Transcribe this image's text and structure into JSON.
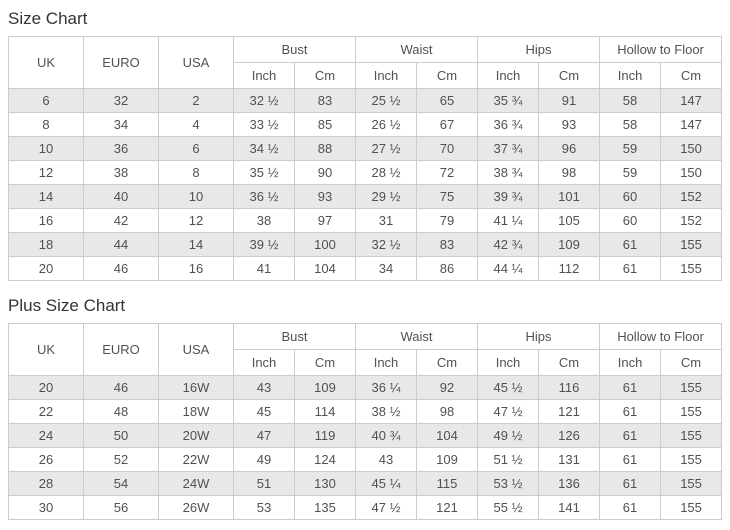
{
  "colors": {
    "page_background": "#ffffff",
    "stripe_row": "#e8e8e8",
    "table_border": "#cccccc",
    "cell_text": "#515151",
    "title_text": "#333333"
  },
  "tables": [
    {
      "title": "Size Chart",
      "simple_headers": [
        "UK",
        "EURO",
        "USA"
      ],
      "group_headers": [
        "Bust",
        "Waist",
        "Hips",
        "Hollow to Floor"
      ],
      "sub_headers": [
        "Inch",
        "Cm"
      ],
      "rows": [
        [
          "6",
          "32",
          "2",
          "32 ½",
          "83",
          "25 ½",
          "65",
          "35 ¾",
          "91",
          "58",
          "147"
        ],
        [
          "8",
          "34",
          "4",
          "33 ½",
          "85",
          "26 ½",
          "67",
          "36 ¾",
          "93",
          "58",
          "147"
        ],
        [
          "10",
          "36",
          "6",
          "34 ½",
          "88",
          "27 ½",
          "70",
          "37 ¾",
          "96",
          "59",
          "150"
        ],
        [
          "12",
          "38",
          "8",
          "35 ½",
          "90",
          "28 ½",
          "72",
          "38 ¾",
          "98",
          "59",
          "150"
        ],
        [
          "14",
          "40",
          "10",
          "36 ½",
          "93",
          "29 ½",
          "75",
          "39 ¾",
          "101",
          "60",
          "152"
        ],
        [
          "16",
          "42",
          "12",
          "38",
          "97",
          "31",
          "79",
          "41 ¼",
          "105",
          "60",
          "152"
        ],
        [
          "18",
          "44",
          "14",
          "39 ½",
          "100",
          "32 ½",
          "83",
          "42 ¾",
          "109",
          "61",
          "155"
        ],
        [
          "20",
          "46",
          "16",
          "41",
          "104",
          "34",
          "86",
          "44 ¼",
          "112",
          "61",
          "155"
        ]
      ]
    },
    {
      "title": "Plus Size Chart",
      "simple_headers": [
        "UK",
        "EURO",
        "USA"
      ],
      "group_headers": [
        "Bust",
        "Waist",
        "Hips",
        "Hollow to Floor"
      ],
      "sub_headers": [
        "Inch",
        "Cm"
      ],
      "rows": [
        [
          "20",
          "46",
          "16W",
          "43",
          "109",
          "36 ¼",
          "92",
          "45 ½",
          "116",
          "61",
          "155"
        ],
        [
          "22",
          "48",
          "18W",
          "45",
          "114",
          "38 ½",
          "98",
          "47 ½",
          "121",
          "61",
          "155"
        ],
        [
          "24",
          "50",
          "20W",
          "47",
          "119",
          "40 ¾",
          "104",
          "49 ½",
          "126",
          "61",
          "155"
        ],
        [
          "26",
          "52",
          "22W",
          "49",
          "124",
          "43",
          "109",
          "51 ½",
          "131",
          "61",
          "155"
        ],
        [
          "28",
          "54",
          "24W",
          "51",
          "130",
          "45 ¼",
          "115",
          "53 ½",
          "136",
          "61",
          "155"
        ],
        [
          "30",
          "56",
          "26W",
          "53",
          "135",
          "47 ½",
          "121",
          "55 ½",
          "141",
          "61",
          "155"
        ]
      ]
    }
  ]
}
